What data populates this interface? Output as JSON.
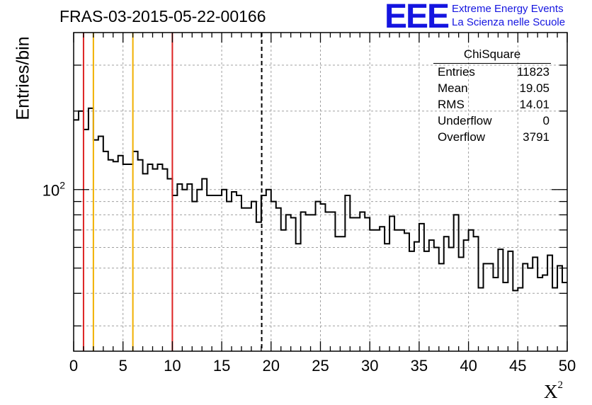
{
  "header": {
    "title": "FRAS-03-2015-05-22-00166",
    "logo_text": "EEE",
    "logo_line1": "Extreme Energy Events",
    "logo_line2": "La Scienza nelle Scuole"
  },
  "stats_box": {
    "name": "ChiSquare",
    "rows": [
      {
        "label": "Entries",
        "value": "11823"
      },
      {
        "label": "Mean",
        "value": "19.05"
      },
      {
        "label": "RMS",
        "value": "14.01"
      },
      {
        "label": "Underflow",
        "value": "0"
      },
      {
        "label": "Overflow",
        "value": "3791"
      }
    ]
  },
  "colors": {
    "red_line": "#dd2222",
    "yellow_line": "#f0b000",
    "histogram": "#000000",
    "grid": "#a0a0a0",
    "logo": "#1515e0"
  },
  "chart_data": {
    "type": "histogram",
    "title": "FRAS-03-2015-05-22-00166",
    "xlabel": "X",
    "xlabel_sup": "2",
    "ylabel": "Entries/bin",
    "xlim": [
      0,
      50
    ],
    "ylim": [
      24,
      400
    ],
    "yscale": "log",
    "bin_width": 0.5,
    "x_ticks": [
      0,
      5,
      10,
      15,
      20,
      25,
      30,
      35,
      40,
      45,
      50
    ],
    "y_tick_label": "10",
    "y_tick_label_sup": "2",
    "y_tick_value": 100,
    "values": [
      185,
      200,
      170,
      205,
      155,
      160,
      140,
      130,
      128,
      135,
      125,
      125,
      140,
      130,
      115,
      125,
      120,
      125,
      120,
      110,
      95,
      105,
      100,
      105,
      90,
      100,
      110,
      95,
      95,
      95,
      100,
      90,
      98,
      95,
      85,
      85,
      90,
      75,
      95,
      100,
      90,
      85,
      70,
      80,
      78,
      62,
      82,
      80,
      80,
      90,
      88,
      82,
      82,
      66,
      66,
      95,
      78,
      78,
      82,
      78,
      70,
      70,
      72,
      62,
      79,
      70,
      70,
      68,
      58,
      63,
      74,
      58,
      64,
      60,
      52,
      66,
      60,
      80,
      55,
      64,
      70,
      66,
      42,
      52,
      52,
      46,
      59,
      44,
      58,
      41,
      42,
      52,
      50,
      55,
      46,
      47,
      56,
      42,
      51,
      44
    ],
    "vertical_lines": [
      {
        "x": 1,
        "color": "red"
      },
      {
        "x": 2,
        "color": "yellow"
      },
      {
        "x": 6,
        "color": "yellow"
      },
      {
        "x": 10,
        "color": "red"
      },
      {
        "x": 19.05,
        "color": "black",
        "style": "dashed"
      }
    ]
  }
}
